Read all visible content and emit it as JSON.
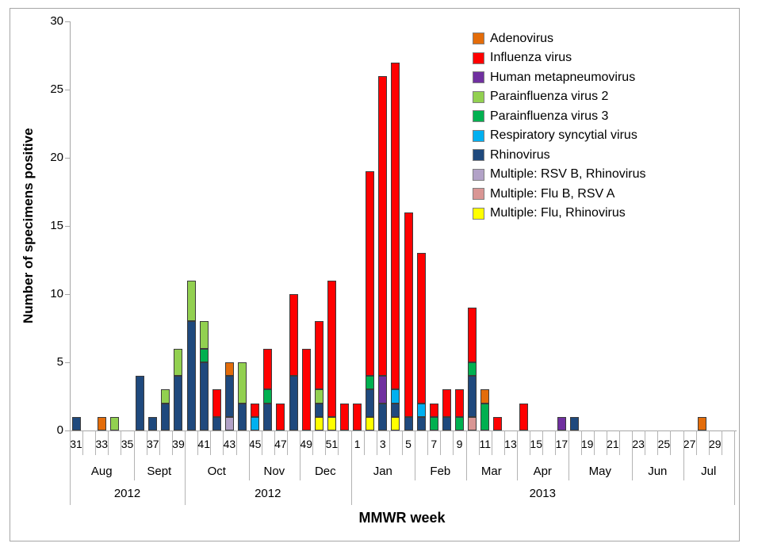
{
  "chart_data": {
    "type": "bar",
    "stacked": true,
    "title": "",
    "xlabel": "MMWR week",
    "ylabel": "Number of specimens positive",
    "ylim": [
      0,
      30
    ],
    "yticks": [
      0,
      5,
      10,
      15,
      20,
      25,
      30
    ],
    "grid": false,
    "legend_position": "top-right-inside",
    "legend": [
      {
        "label": "Adenovirus",
        "color": "#E36C0A"
      },
      {
        "label": "Influenza virus",
        "color": "#FF0000"
      },
      {
        "label": "Human metapneumovirus",
        "color": "#7030A0"
      },
      {
        "label": "Parainfluenza virus 2",
        "color": "#92D050"
      },
      {
        "label": "Parainfluenza virus 3",
        "color": "#00B050"
      },
      {
        "label": "Respiratory syncytial virus",
        "color": "#00B0F0"
      },
      {
        "label": "Rhinovirus",
        "color": "#1F497D"
      },
      {
        "label": "Multiple: RSV B, Rhinovirus",
        "color": "#B2A2C7"
      },
      {
        "label": "Multiple: Flu B, RSV A",
        "color": "#D99694"
      },
      {
        "label": "Multiple: Flu, Rhinovirus",
        "color": "#FFFF00"
      }
    ],
    "x": [
      "31",
      "32",
      "33",
      "34",
      "35",
      "36",
      "37",
      "38",
      "39",
      "40",
      "41",
      "42",
      "43",
      "44",
      "45",
      "46",
      "47",
      "48",
      "49",
      "50",
      "51",
      "52",
      "1",
      "2",
      "3",
      "4",
      "5",
      "6",
      "7",
      "8",
      "9",
      "10",
      "11",
      "12",
      "13",
      "14",
      "15",
      "16",
      "17",
      "18",
      "19",
      "20",
      "21",
      "22",
      "23",
      "24",
      "25",
      "26",
      "27",
      "28",
      "29",
      "30"
    ],
    "week_tick_labels": [
      "31",
      "33",
      "35",
      "37",
      "39",
      "41",
      "43",
      "45",
      "47",
      "49",
      "51",
      "1",
      "3",
      "5",
      "7",
      "9",
      "11",
      "13",
      "15",
      "17",
      "21",
      "23",
      "25",
      "27",
      "29",
      "19"
    ],
    "months": [
      {
        "label": "Aug",
        "weeks": 5
      },
      {
        "label": "Sept",
        "weeks": 4
      },
      {
        "label": "Oct",
        "weeks": 5
      },
      {
        "label": "Nov",
        "weeks": 4
      },
      {
        "label": "Dec",
        "weeks": 4
      },
      {
        "label": "Jan",
        "weeks": 5
      },
      {
        "label": "Feb",
        "weeks": 4
      },
      {
        "label": "Mar",
        "weeks": 4
      },
      {
        "label": "Apr",
        "weeks": 4
      },
      {
        "label": "May",
        "weeks": 5
      },
      {
        "label": "Jun",
        "weeks": 4
      },
      {
        "label": "Jul",
        "weeks": 4
      }
    ],
    "years": [
      {
        "label": "2012",
        "weeks": 9
      },
      {
        "label": "2012",
        "weeks": 13
      },
      {
        "label": "2013",
        "weeks": 30
      }
    ],
    "bars": [
      {
        "week": "31",
        "segments": [
          [
            "Rhinovirus",
            1
          ]
        ]
      },
      {
        "week": "33",
        "segments": [
          [
            "Adenovirus",
            1
          ]
        ]
      },
      {
        "week": "34",
        "segments": [
          [
            "Parainfluenza virus 2",
            1
          ]
        ]
      },
      {
        "week": "36",
        "segments": [
          [
            "Rhinovirus",
            4
          ]
        ]
      },
      {
        "week": "37",
        "segments": [
          [
            "Rhinovirus",
            1
          ]
        ]
      },
      {
        "week": "38",
        "segments": [
          [
            "Rhinovirus",
            2
          ],
          [
            "Parainfluenza virus 2",
            1
          ]
        ]
      },
      {
        "week": "39",
        "segments": [
          [
            "Rhinovirus",
            4
          ],
          [
            "Parainfluenza virus 2",
            2
          ]
        ]
      },
      {
        "week": "40",
        "segments": [
          [
            "Rhinovirus",
            8
          ],
          [
            "Parainfluenza virus 2",
            3
          ]
        ]
      },
      {
        "week": "41",
        "segments": [
          [
            "Rhinovirus",
            5
          ],
          [
            "Parainfluenza virus 3",
            1
          ],
          [
            "Parainfluenza virus 2",
            2
          ]
        ]
      },
      {
        "week": "42",
        "segments": [
          [
            "Rhinovirus",
            1
          ],
          [
            "Influenza virus",
            2
          ]
        ]
      },
      {
        "week": "43",
        "segments": [
          [
            "Multiple: RSV B, Rhinovirus",
            1
          ],
          [
            "Rhinovirus",
            3
          ],
          [
            "Adenovirus",
            1
          ]
        ]
      },
      {
        "week": "44",
        "segments": [
          [
            "Rhinovirus",
            2
          ],
          [
            "Parainfluenza virus 2",
            3
          ]
        ]
      },
      {
        "week": "45",
        "segments": [
          [
            "Respiratory syncytial virus",
            1
          ],
          [
            "Influenza virus",
            1
          ]
        ]
      },
      {
        "week": "46",
        "segments": [
          [
            "Rhinovirus",
            2
          ],
          [
            "Parainfluenza virus 3",
            1
          ],
          [
            "Influenza virus",
            3
          ]
        ]
      },
      {
        "week": "47",
        "segments": [
          [
            "Influenza virus",
            2
          ]
        ]
      },
      {
        "week": "48",
        "segments": [
          [
            "Rhinovirus",
            4
          ],
          [
            "Influenza virus",
            6
          ]
        ]
      },
      {
        "week": "49",
        "segments": [
          [
            "Influenza virus",
            6
          ]
        ]
      },
      {
        "week": "50",
        "segments": [
          [
            "Multiple: Flu, Rhinovirus",
            1
          ],
          [
            "Rhinovirus",
            1
          ],
          [
            "Parainfluenza virus 2",
            1
          ],
          [
            "Influenza virus",
            5
          ]
        ]
      },
      {
        "week": "51",
        "segments": [
          [
            "Multiple: Flu, Rhinovirus",
            1
          ],
          [
            "Influenza virus",
            10
          ]
        ]
      },
      {
        "week": "52",
        "segments": [
          [
            "Influenza virus",
            2
          ]
        ]
      },
      {
        "week": "1",
        "segments": [
          [
            "Influenza virus",
            2
          ]
        ]
      },
      {
        "week": "2",
        "segments": [
          [
            "Multiple: Flu, Rhinovirus",
            1
          ],
          [
            "Rhinovirus",
            2
          ],
          [
            "Parainfluenza virus 3",
            1
          ],
          [
            "Influenza virus",
            15
          ]
        ]
      },
      {
        "week": "3",
        "segments": [
          [
            "Rhinovirus",
            2
          ],
          [
            "Human metapneumovirus",
            2
          ],
          [
            "Influenza virus",
            22
          ]
        ]
      },
      {
        "week": "4",
        "segments": [
          [
            "Multiple: Flu, Rhinovirus",
            1
          ],
          [
            "Rhinovirus",
            1
          ],
          [
            "Respiratory syncytial virus",
            1
          ],
          [
            "Influenza virus",
            24
          ]
        ]
      },
      {
        "week": "5",
        "segments": [
          [
            "Rhinovirus",
            1
          ],
          [
            "Influenza virus",
            15
          ]
        ]
      },
      {
        "week": "6",
        "segments": [
          [
            "Rhinovirus",
            1
          ],
          [
            "Respiratory syncytial virus",
            1
          ],
          [
            "Influenza virus",
            11
          ]
        ]
      },
      {
        "week": "7",
        "segments": [
          [
            "Parainfluenza virus 3",
            1
          ],
          [
            "Influenza virus",
            1
          ]
        ]
      },
      {
        "week": "8",
        "segments": [
          [
            "Rhinovirus",
            1
          ],
          [
            "Influenza virus",
            2
          ]
        ]
      },
      {
        "week": "9",
        "segments": [
          [
            "Parainfluenza virus 3",
            1
          ],
          [
            "Influenza virus",
            2
          ]
        ]
      },
      {
        "week": "10",
        "segments": [
          [
            "Multiple: Flu B, RSV A",
            1
          ],
          [
            "Rhinovirus",
            3
          ],
          [
            "Parainfluenza virus 3",
            1
          ],
          [
            "Influenza virus",
            4
          ]
        ]
      },
      {
        "week": "11",
        "segments": [
          [
            "Parainfluenza virus 3",
            2
          ],
          [
            "Adenovirus",
            1
          ]
        ]
      },
      {
        "week": "12",
        "segments": [
          [
            "Influenza virus",
            1
          ]
        ]
      },
      {
        "week": "14",
        "segments": [
          [
            "Influenza virus",
            2
          ]
        ]
      },
      {
        "week": "17",
        "segments": [
          [
            "Human metapneumovirus",
            1
          ]
        ]
      },
      {
        "week": "18",
        "segments": [
          [
            "Rhinovirus",
            1
          ]
        ]
      },
      {
        "week": "28",
        "segments": [
          [
            "Adenovirus",
            1
          ]
        ]
      }
    ]
  }
}
